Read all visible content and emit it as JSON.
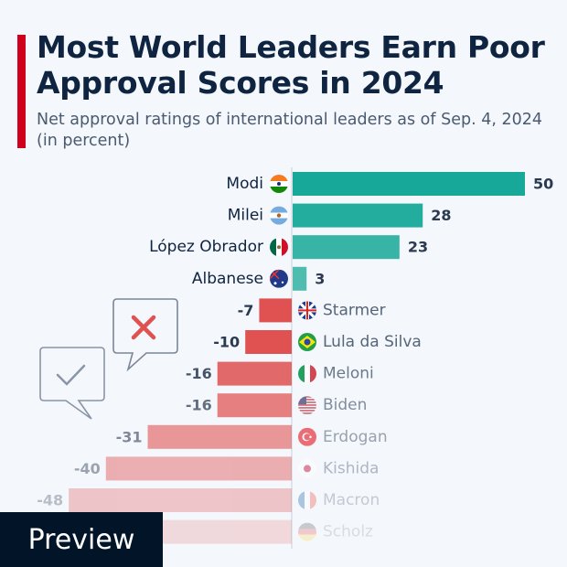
{
  "title": "Most World Leaders Earn Poor Approval Scores in 2024",
  "subtitle": "Net approval ratings of international leaders as of Sep. 4, 2024 (in percent)",
  "preview_label": "Preview",
  "colors": {
    "positive": "#17a89a",
    "negative": "#e05252",
    "accent": "#d0021b"
  },
  "chart_data": {
    "type": "bar",
    "orientation": "horizontal",
    "title": "Most World Leaders Earn Poor Approval Scores in 2024",
    "subtitle": "Net approval ratings of international leaders as of Sep. 4, 2024 (in percent)",
    "categories": [
      "Modi",
      "Milei",
      "López Obrador",
      "Albanese",
      "Starmer",
      "Lula da Silva",
      "Meloni",
      "Biden",
      "Erdogan",
      "Kishida",
      "Macron",
      "Scholz"
    ],
    "flags": [
      "india",
      "argentina",
      "mexico",
      "australia",
      "uk",
      "brazil",
      "italy",
      "usa",
      "turkey",
      "japan",
      "france",
      "germany"
    ],
    "values": [
      50,
      28,
      23,
      3,
      -7,
      -10,
      -16,
      -16,
      -31,
      -40,
      -48,
      null
    ],
    "grid": false,
    "legend": "none"
  }
}
